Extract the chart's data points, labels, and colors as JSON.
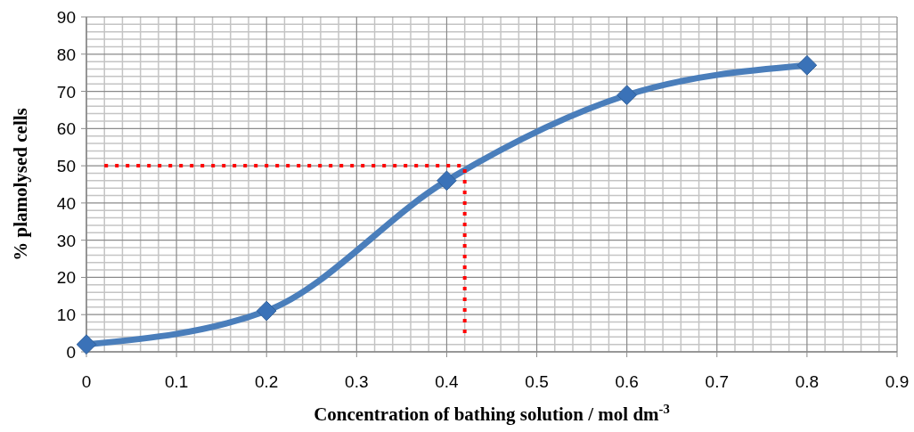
{
  "chart_data": {
    "type": "line",
    "xlabel": "Concentration of bathing solution / mol dm$^{-3}$",
    "ylabel": "% plamolysed cells",
    "xlim": [
      0,
      0.9
    ],
    "xticks": [
      0,
      0.1,
      0.2,
      0.3,
      0.4,
      0.5,
      0.6,
      0.7,
      0.8,
      0.9
    ],
    "ylim": [
      0,
      90
    ],
    "yticks": [
      0,
      10,
      20,
      30,
      40,
      50,
      60,
      70,
      80,
      90
    ],
    "grid": true,
    "series": [
      {
        "x": [
          0,
          0.2,
          0.4,
          0.6,
          0.8
        ],
        "values": [
          2,
          11,
          46,
          69,
          77
        ],
        "color": "#4a7ebb",
        "marker": "diamond",
        "line_style": "solid"
      },
      {
        "x": [
          0.02,
          0.42
        ],
        "values": [
          50,
          50
        ],
        "color": "#ff0000",
        "marker": "none",
        "line_style": "dotted"
      },
      {
        "x": [
          0.42,
          0.42
        ],
        "values": [
          5,
          50
        ],
        "color": "#ff0000",
        "marker": "none",
        "line_style": "dotted"
      }
    ]
  }
}
